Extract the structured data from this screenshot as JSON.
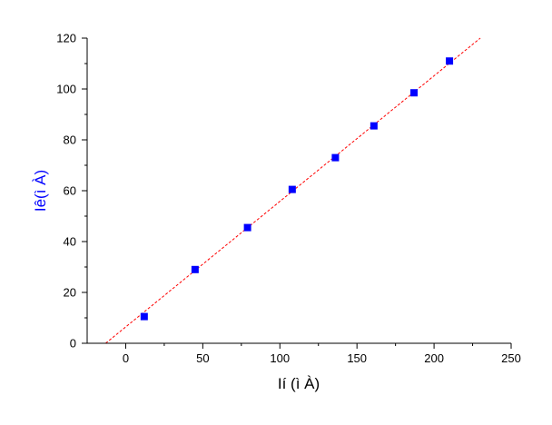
{
  "chart_data": {
    "type": "scatter",
    "xlabel": "Ií  (ì À)",
    "ylabel": "Iê(ì À)",
    "xlim": [
      -25,
      250
    ],
    "ylim": [
      0,
      120
    ],
    "x_ticks": [
      0,
      50,
      100,
      150,
      200,
      250
    ],
    "y_ticks": [
      0,
      20,
      40,
      60,
      80,
      100,
      120
    ],
    "grid": false,
    "legend": "none",
    "series": [
      {
        "x": [
          12,
          45,
          79,
          108,
          136,
          161,
          187,
          210
        ],
        "y": [
          10.5,
          29.0,
          45.5,
          60.5,
          73.0,
          85.5,
          98.5,
          111.0
        ],
        "marker": "square",
        "color": "#0000ff"
      }
    ],
    "fit_line": {
      "x": [
        -13,
        230
      ],
      "y": [
        0,
        120
      ],
      "color": "#ff0000",
      "style": "dashed"
    },
    "ylabel_color": "#0000ff",
    "xlabel_color": "#000000"
  }
}
